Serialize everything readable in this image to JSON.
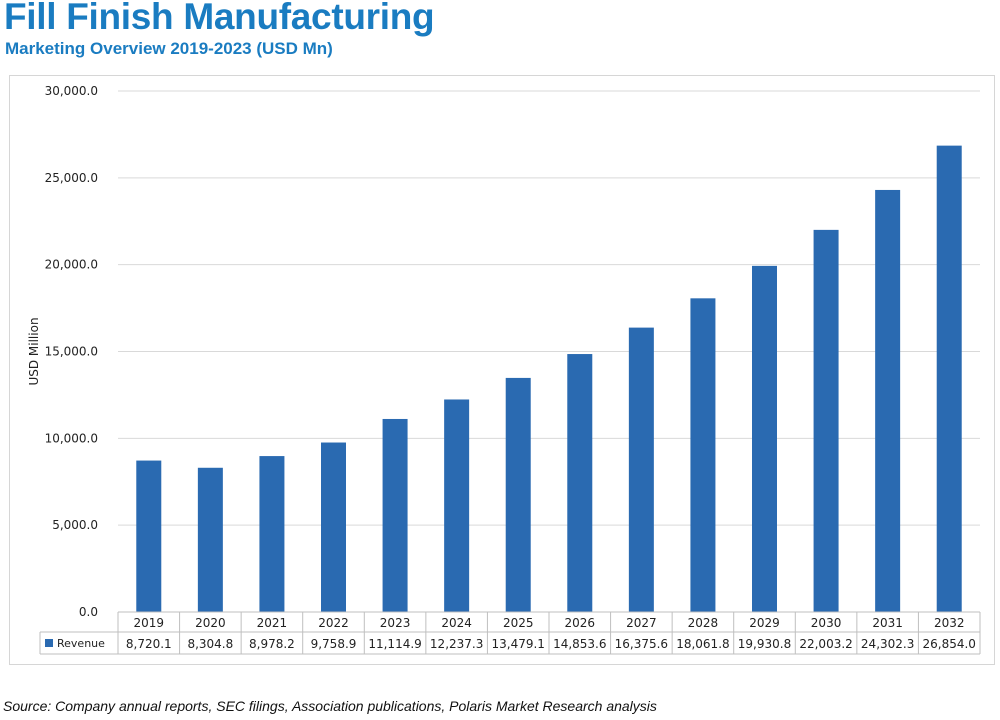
{
  "header": {
    "title": "Fill Finish Manufacturing",
    "subtitle": "Marketing Overview 2019-2023 (USD Mn)"
  },
  "footer": {
    "source": "Source: Company annual reports, SEC filings, Association publications, Polaris Market Research analysis"
  },
  "chart_data": {
    "type": "bar",
    "ylabel": "USD Million",
    "ylim": [
      0,
      30000
    ],
    "yticks": [
      "0.0",
      "5,000.0",
      "10,000.0",
      "15,000.0",
      "20,000.0",
      "25,000.0",
      "30,000.0"
    ],
    "grid": true,
    "legend": "data-table",
    "categories": [
      "2019",
      "2020",
      "2021",
      "2022",
      "2023",
      "2024",
      "2025",
      "2026",
      "2027",
      "2028",
      "2029",
      "2030",
      "2031",
      "2032"
    ],
    "series": [
      {
        "name": "Revenue",
        "color": "#2a6ab1",
        "values": [
          8720.1,
          8304.8,
          8978.2,
          9758.9,
          11114.9,
          12237.3,
          13479.1,
          14853.6,
          16375.6,
          18061.8,
          19930.8,
          22003.2,
          24302.3,
          26854.0
        ],
        "labels": [
          "8,720.1",
          "8,304.8",
          "8,978.2",
          "9,758.9",
          "11,114.9",
          "12,237.3",
          "13,479.1",
          "14,853.6",
          "16,375.6",
          "18,061.8",
          "19,930.8",
          "22,003.2",
          "24,302.3",
          "26,854.0"
        ]
      }
    ]
  }
}
